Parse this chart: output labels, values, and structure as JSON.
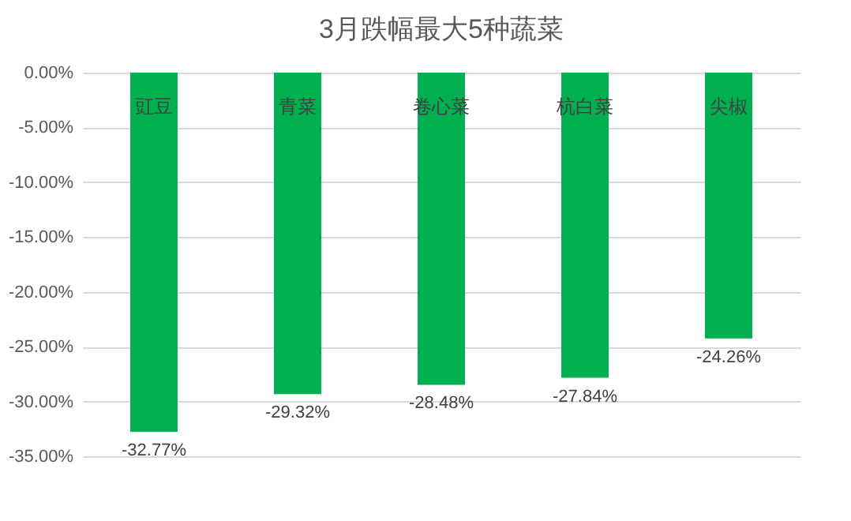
{
  "chart_data": {
    "type": "bar",
    "title": "3月跌幅最大5种蔬菜",
    "categories": [
      "豇豆",
      "青菜",
      "卷心菜",
      "杭白菜",
      "尖椒"
    ],
    "values": [
      -32.77,
      -29.32,
      -28.48,
      -27.84,
      -24.26
    ],
    "value_labels": [
      "-32.77%",
      "-29.32%",
      "-28.48%",
      "-27.84%",
      "-24.26%"
    ],
    "color": "#00b050",
    "ylim": [
      -35,
      0
    ],
    "yticks": [
      {
        "value": 0,
        "label": "0.00%"
      },
      {
        "value": -5,
        "label": "-5.00%"
      },
      {
        "value": -10,
        "label": "-10.00%"
      },
      {
        "value": -15,
        "label": "-15.00%"
      },
      {
        "value": -20,
        "label": "-20.00%"
      },
      {
        "value": -25,
        "label": "-25.00%"
      },
      {
        "value": -30,
        "label": "-30.00%"
      },
      {
        "value": -35,
        "label": "-35.00%"
      }
    ],
    "grid": "y"
  }
}
